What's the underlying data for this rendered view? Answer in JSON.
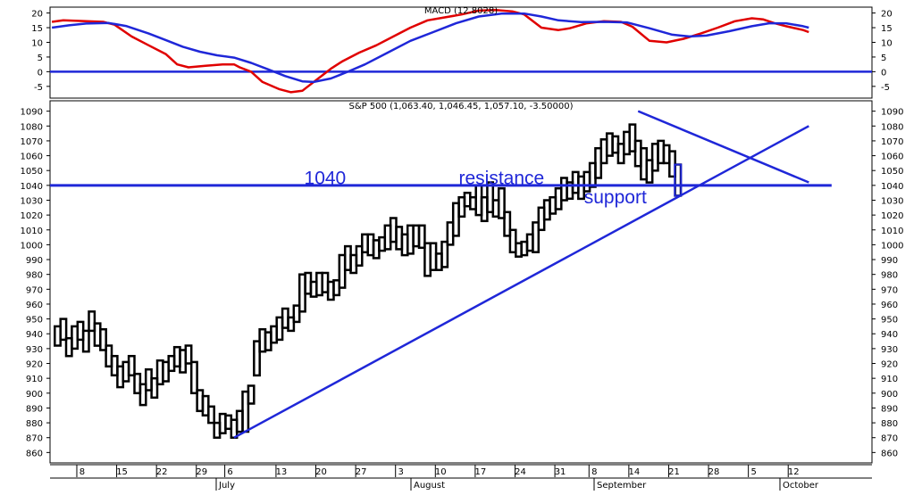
{
  "chart_data": [
    {
      "type": "line",
      "title": "MACD (12.8028)",
      "ylim": [
        -9,
        22
      ],
      "yticks": [
        -5,
        0,
        5,
        10,
        15,
        20
      ],
      "zero_line": 0,
      "series": [
        {
          "color": "#e00000",
          "points": [
            [
              -1,
              17
            ],
            [
              1,
              17.5
            ],
            [
              4,
              17.3
            ],
            [
              8,
              17
            ],
            [
              10,
              16
            ],
            [
              13,
              12
            ],
            [
              16,
              9
            ],
            [
              19,
              6
            ],
            [
              21,
              2.5
            ],
            [
              23,
              1.5
            ],
            [
              26,
              2
            ],
            [
              29,
              2.5
            ],
            [
              31,
              2.5
            ],
            [
              32,
              1.5
            ],
            [
              34,
              0
            ],
            [
              36,
              -3.5
            ],
            [
              39,
              -6
            ],
            [
              41,
              -7
            ],
            [
              43,
              -6.5
            ],
            [
              44,
              -5
            ],
            [
              46,
              -2
            ],
            [
              48,
              1
            ],
            [
              50,
              3.5
            ],
            [
              53,
              6.5
            ],
            [
              56,
              9
            ],
            [
              59,
              12
            ],
            [
              62,
              15
            ],
            [
              65,
              17.5
            ],
            [
              68,
              18.5
            ],
            [
              71,
              19.5
            ],
            [
              74,
              20.8
            ],
            [
              77,
              21
            ],
            [
              80,
              20.5
            ],
            [
              82,
              19.5
            ],
            [
              85,
              15
            ],
            [
              88,
              14.2
            ],
            [
              90,
              14.8
            ],
            [
              93,
              16.5
            ],
            [
              96,
              17.2
            ],
            [
              99,
              17
            ],
            [
              101,
              15.3
            ],
            [
              104,
              10.5
            ],
            [
              107,
              10
            ],
            [
              110,
              11.2
            ],
            [
              113,
              13
            ],
            [
              116,
              15
            ],
            [
              119,
              17.2
            ],
            [
              122,
              18.2
            ],
            [
              124,
              17.8
            ],
            [
              126,
              16.5
            ],
            [
              128,
              15.5
            ],
            [
              131,
              14.2
            ],
            [
              132,
              13.5
            ]
          ]
        },
        {
          "color": "#1f27d8",
          "points": [
            [
              -1,
              15
            ],
            [
              2,
              15.8
            ],
            [
              5,
              16.4
            ],
            [
              9,
              16.6
            ],
            [
              12,
              15.6
            ],
            [
              16,
              13
            ],
            [
              19,
              10.8
            ],
            [
              22,
              8.5
            ],
            [
              25,
              6.8
            ],
            [
              28,
              5.6
            ],
            [
              31,
              4.8
            ],
            [
              34,
              3
            ],
            [
              37,
              0.8
            ],
            [
              40,
              -1.5
            ],
            [
              43,
              -3.3
            ],
            [
              45,
              -3.5
            ],
            [
              48,
              -2.3
            ],
            [
              51,
              0
            ],
            [
              54,
              2.5
            ],
            [
              58,
              6.5
            ],
            [
              62,
              10.5
            ],
            [
              66,
              13.5
            ],
            [
              70,
              16.5
            ],
            [
              74,
              18.8
            ],
            [
              78,
              19.8
            ],
            [
              82,
              19.8
            ],
            [
              85,
              18.8
            ],
            [
              88,
              17.5
            ],
            [
              92,
              16.9
            ],
            [
              96,
              17
            ],
            [
              100,
              16.8
            ],
            [
              104,
              14.8
            ],
            [
              108,
              12.6
            ],
            [
              111,
              12
            ],
            [
              114,
              12.3
            ],
            [
              118,
              13.8
            ],
            [
              122,
              15.5
            ],
            [
              125,
              16.5
            ],
            [
              128,
              16.5
            ],
            [
              131,
              15.5
            ],
            [
              132,
              15
            ]
          ]
        }
      ]
    },
    {
      "type": "bar",
      "title": "S&P 500 (1,063.40, 1,046.45, 1,057.10, -3.50000)",
      "ylim": [
        853,
        1097
      ],
      "yticks": [
        860,
        870,
        880,
        890,
        900,
        910,
        920,
        930,
        940,
        950,
        960,
        970,
        980,
        990,
        1000,
        1010,
        1020,
        1030,
        1040,
        1050,
        1060,
        1070,
        1080,
        1090
      ],
      "x_axis": {
        "days": [
          "8",
          "15",
          "22",
          "29",
          "6",
          "13",
          "20",
          "27",
          "3",
          "10",
          "17",
          "24",
          "31",
          "8",
          "14",
          "21",
          "28",
          "5",
          "12"
        ],
        "months": [
          "July",
          "August",
          "September",
          "October"
        ]
      },
      "candles": [
        [
          0,
          945,
          932
        ],
        [
          1,
          950,
          936
        ],
        [
          2,
          937,
          925
        ],
        [
          3,
          945,
          930
        ],
        [
          4,
          948,
          936
        ],
        [
          5,
          942,
          928
        ],
        [
          6,
          955,
          942
        ],
        [
          7,
          947,
          932
        ],
        [
          8,
          943,
          929
        ],
        [
          9,
          932,
          918
        ],
        [
          10,
          925,
          912
        ],
        [
          11,
          918,
          904
        ],
        [
          12,
          921,
          908
        ],
        [
          13,
          925,
          912
        ],
        [
          14,
          913,
          900
        ],
        [
          15,
          906,
          892
        ],
        [
          16,
          916,
          902
        ],
        [
          17,
          910,
          897
        ],
        [
          18,
          922,
          906
        ],
        [
          19,
          921,
          908
        ],
        [
          20,
          925,
          915
        ],
        [
          21,
          931,
          918
        ],
        [
          22,
          929,
          914
        ],
        [
          23,
          932,
          920
        ],
        [
          24,
          921,
          900
        ],
        [
          25,
          902,
          888
        ],
        [
          26,
          898,
          885
        ],
        [
          27,
          891,
          880
        ],
        [
          28,
          880,
          870
        ],
        [
          29,
          886,
          873
        ],
        [
          30,
          885,
          876
        ],
        [
          31,
          882,
          870
        ],
        [
          32,
          888,
          874
        ],
        [
          33,
          901,
          874
        ],
        [
          34,
          905,
          893
        ],
        [
          35,
          935,
          912
        ],
        [
          36,
          943,
          928
        ],
        [
          37,
          941,
          929
        ],
        [
          38,
          945,
          934
        ],
        [
          39,
          951,
          936
        ],
        [
          40,
          957,
          944
        ],
        [
          41,
          951,
          942
        ],
        [
          42,
          959,
          948
        ],
        [
          43,
          980,
          955
        ],
        [
          44,
          981,
          967
        ],
        [
          45,
          975,
          965
        ],
        [
          46,
          981,
          966
        ],
        [
          47,
          981,
          968
        ],
        [
          48,
          975,
          963
        ],
        [
          49,
          976,
          966
        ],
        [
          50,
          993,
          971
        ],
        [
          51,
          999,
          983
        ],
        [
          52,
          993,
          981
        ],
        [
          53,
          999,
          986
        ],
        [
          54,
          1007,
          995
        ],
        [
          55,
          1007,
          993
        ],
        [
          56,
          1003,
          991
        ],
        [
          57,
          1005,
          996
        ],
        [
          58,
          1013,
          997
        ],
        [
          59,
          1018,
          1002
        ],
        [
          60,
          1012,
          997
        ],
        [
          61,
          1007,
          993
        ],
        [
          62,
          1013,
          994
        ],
        [
          63,
          1013,
          999
        ],
        [
          64,
          1013,
          998
        ],
        [
          65,
          1001,
          979
        ],
        [
          66,
          1001,
          983
        ],
        [
          67,
          994,
          983
        ],
        [
          68,
          1002,
          985
        ],
        [
          69,
          1015,
          1000
        ],
        [
          70,
          1028,
          1006
        ],
        [
          71,
          1032,
          1019
        ],
        [
          72,
          1035,
          1026
        ],
        [
          73,
          1032,
          1024
        ],
        [
          74,
          1040,
          1020
        ],
        [
          75,
          1032,
          1016
        ],
        [
          76,
          1042,
          1022
        ],
        [
          77,
          1030,
          1019
        ],
        [
          78,
          1038,
          1018
        ],
        [
          79,
          1022,
          1006
        ],
        [
          80,
          1010,
          995
        ],
        [
          81,
          1001,
          992
        ],
        [
          82,
          1002,
          993
        ],
        [
          83,
          1007,
          996
        ],
        [
          84,
          1015,
          995
        ],
        [
          85,
          1025,
          1010
        ],
        [
          86,
          1030,
          1017
        ],
        [
          87,
          1032,
          1021
        ],
        [
          88,
          1038,
          1024
        ],
        [
          89,
          1045,
          1030
        ],
        [
          90,
          1042,
          1031
        ],
        [
          91,
          1049,
          1035
        ],
        [
          92,
          1046,
          1031
        ],
        [
          93,
          1049,
          1036
        ],
        [
          94,
          1055,
          1039
        ],
        [
          95,
          1065,
          1045
        ],
        [
          96,
          1071,
          1055
        ],
        [
          97,
          1075,
          1060
        ],
        [
          98,
          1073,
          1062
        ],
        [
          99,
          1068,
          1055
        ],
        [
          100,
          1076,
          1061
        ],
        [
          101,
          1081,
          1063
        ],
        [
          102,
          1070,
          1053
        ],
        [
          103,
          1065,
          1044
        ],
        [
          104,
          1057,
          1042
        ],
        [
          105,
          1068,
          1050
        ],
        [
          106,
          1070,
          1055
        ],
        [
          107,
          1067,
          1055
        ],
        [
          108,
          1063,
          1046
        ],
        [
          109,
          1054,
          1033
        ]
      ],
      "annotations": [
        {
          "text": "1040",
          "x": 47,
          "y": 1045
        },
        {
          "text": "resistance",
          "x": 78,
          "y": 1045
        },
        {
          "text": "support",
          "x": 98,
          "y": 1032
        }
      ],
      "lines": [
        {
          "name": "resistance",
          "from": [
            -4,
            1040
          ],
          "to": [
            136,
            1040
          ]
        },
        {
          "name": "support-trendline",
          "from": [
            31,
            870
          ],
          "to": [
            132,
            1080
          ]
        },
        {
          "name": "upper-trendline",
          "from": [
            102,
            1090
          ],
          "to": [
            132,
            1042
          ]
        }
      ]
    }
  ]
}
